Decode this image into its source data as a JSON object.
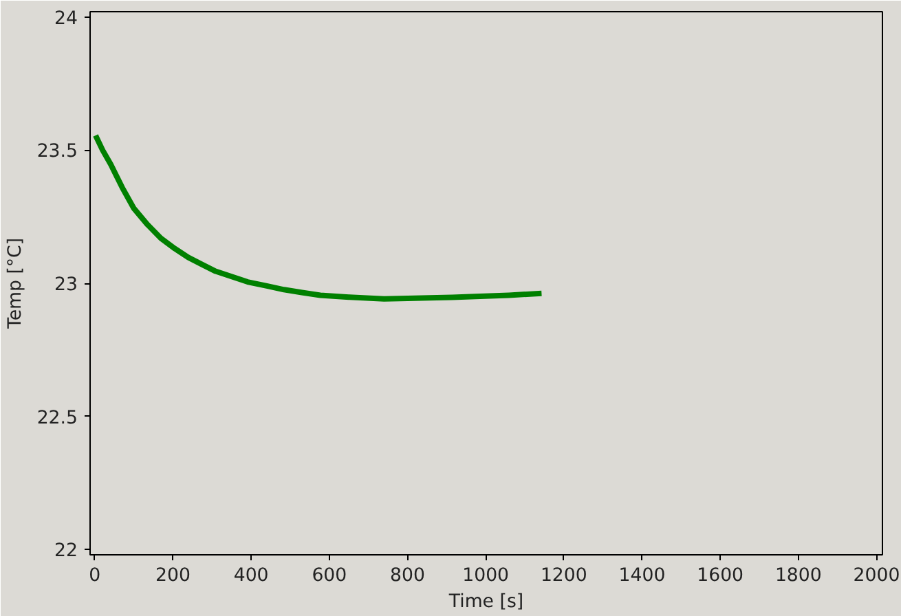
{
  "chart_data": {
    "type": "line",
    "xlabel": "Time [s]",
    "ylabel": "Temp [°C]",
    "series": [
      {
        "color": "#008000",
        "x": [
          2,
          20,
          41,
          70,
          100,
          135,
          169,
          205,
          239,
          275,
          309,
          350,
          391,
          440,
          484,
          530,
          577,
          650,
          740,
          800,
          856,
          915,
          973,
          1060,
          1143
        ],
        "values": [
          23.555,
          23.5,
          23.446,
          23.36,
          23.281,
          23.22,
          23.169,
          23.13,
          23.097,
          23.07,
          23.045,
          23.025,
          23.005,
          22.99,
          22.976,
          22.965,
          22.955,
          22.948,
          22.941,
          22.943,
          22.945,
          22.947,
          22.95,
          22.955,
          22.962
        ]
      }
    ],
    "xlim": [
      -12,
      2015
    ],
    "ylim": [
      21.98,
      24.02
    ],
    "xticks": [
      0,
      200,
      400,
      600,
      800,
      1000,
      1200,
      1400,
      1600,
      1800,
      2000
    ],
    "yticks": [
      22,
      22.5,
      23,
      23.5,
      24
    ],
    "grid": false,
    "marker": "none",
    "line_style": "solid"
  }
}
